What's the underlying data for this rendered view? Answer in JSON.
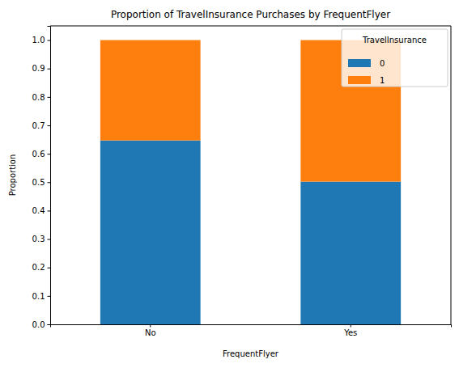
{
  "chart_data": {
    "type": "bar",
    "stacked": true,
    "title": "Proportion of TravelInsurance Purchases by FrequentFlyer",
    "x_label": "FrequentFlyer",
    "y_label": "Proportion",
    "categories": [
      "No",
      "Yes"
    ],
    "series": [
      {
        "name": "0",
        "color": "#1f77b4",
        "values": [
          0.647,
          0.502
        ]
      },
      {
        "name": "1",
        "color": "#ff7f0e",
        "values": [
          0.353,
          0.498
        ]
      }
    ],
    "ylim": [
      0,
      1.05
    ],
    "yticks": [
      {
        "value": 0,
        "label": "0.0"
      },
      0.1,
      0.2,
      0.3,
      0.4,
      0.5,
      0.6,
      0.7,
      0.8,
      0.9,
      {
        "value": 1,
        "label": "1.0"
      }
    ],
    "legend": "upper right",
    "legend_title": "TravelInsurance"
  }
}
